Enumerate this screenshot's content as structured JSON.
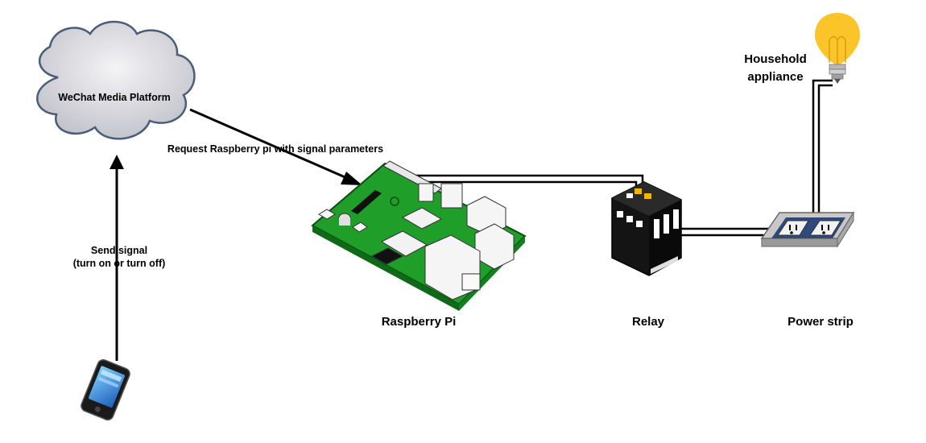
{
  "nodes": {
    "cloud": {
      "label": "WeChat Media Platform",
      "icon": "cloud-icon"
    },
    "phone": {
      "icon": "smartphone-icon"
    },
    "raspberry_pi": {
      "label": "Raspberry Pi",
      "icon": "raspberry-pi-board-icon"
    },
    "relay": {
      "label": "Relay",
      "icon": "relay-icon"
    },
    "power_strip": {
      "label": "Power strip",
      "icon": "power-outlet-icon"
    },
    "appliance": {
      "label_line1": "Household",
      "label_line2": "appliance",
      "icon": "light-bulb-icon"
    }
  },
  "edges": {
    "phone_to_cloud": {
      "line1": "Send signal",
      "line2": "(turn on or turn off)"
    },
    "cloud_to_pi": {
      "label": "Request Raspberry pi with signal parameters"
    }
  },
  "colors": {
    "cloud_fill": "#d9d9de",
    "cloud_stroke": "#5b6f8c",
    "board_green": "#22a32c",
    "bulb_yellow": "#fbc52a",
    "outlet_blue": "#2d4a7a",
    "wire": "#000000"
  }
}
